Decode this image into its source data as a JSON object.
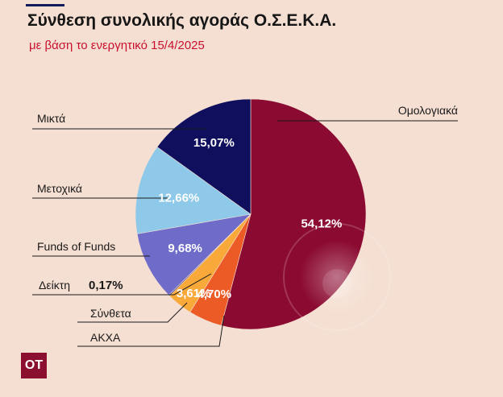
{
  "title": "Σύνθεση συνολικής αγοράς Ο.Σ.Ε.Κ.Α.",
  "subtitle": "με βάση το ενεργητικό 15/4/2025",
  "logo": "OT",
  "chart_data": {
    "type": "pie",
    "slices": [
      {
        "label": "Ομολογιακά",
        "value": 54.12,
        "value_label": "54,12%",
        "color": "#8b0a31"
      },
      {
        "label": "ΑΚΧΑ",
        "value": 4.7,
        "value_label": "4,70%",
        "color": "#ec5a26"
      },
      {
        "label": "Σύνθετα",
        "value": 3.61,
        "value_label": "3,61%",
        "color": "#f9a93a"
      },
      {
        "label": "Δείκτη",
        "value": 0.17,
        "value_label": "0,17%",
        "color": "#2a2a6e"
      },
      {
        "label": "Funds of Funds",
        "value": 9.68,
        "value_label": "9,68%",
        "color": "#6e6bc9"
      },
      {
        "label": "Μετοχικά",
        "value": 12.66,
        "value_label": "12,66%",
        "color": "#8ec9e9"
      },
      {
        "label": "Μικτά",
        "value": 15.07,
        "value_label": "15,07%",
        "color": "#0f0f5e"
      }
    ]
  }
}
